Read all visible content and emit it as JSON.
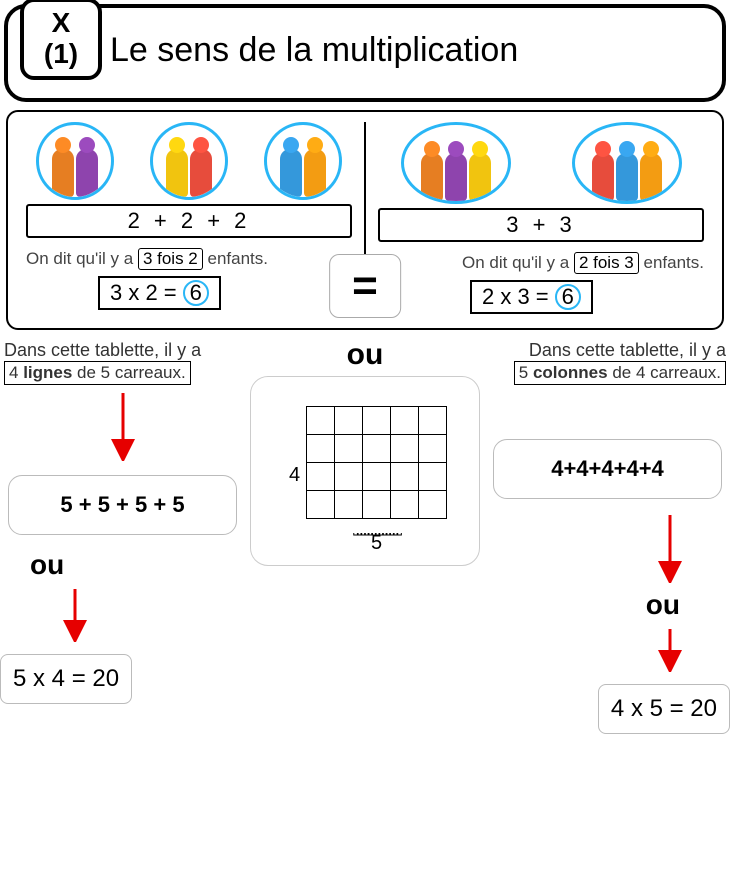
{
  "header": {
    "badge_top": "X",
    "badge_bottom": "(1)",
    "title": "Le sens de la multiplication"
  },
  "panel1": {
    "left": {
      "groups": [
        [
          "#e67e22",
          "#8e44ad"
        ],
        [
          "#f1c40f",
          "#e74c3c"
        ],
        [
          "#3498db",
          "#f39c12"
        ]
      ],
      "addition": "2     +     2     +     2",
      "say_pre": "On dit qu'il y a",
      "say_box": "3 fois 2",
      "say_post": "enfants.",
      "mult": "3 x 2 =",
      "result": "6"
    },
    "right": {
      "groups": [
        [
          "#e67e22",
          "#8e44ad",
          "#f1c40f"
        ],
        [
          "#e74c3c",
          "#3498db",
          "#f39c12"
        ]
      ],
      "addition": "3        +        3",
      "say_pre": "On dit qu'il y a",
      "say_box": "2 fois 3",
      "say_post": "enfants.",
      "mult": "2 x 3 =",
      "result": "6"
    },
    "equals": "="
  },
  "panel2": {
    "ou": "ou",
    "left": {
      "intro": "Dans cette tablette, il y a",
      "box_html": "4 <b>lignes</b> de 5 carreaux.",
      "sum": "5 + 5 + 5 + 5",
      "ou": "ou",
      "result": "5 x 4 = 20"
    },
    "right": {
      "intro": "Dans cette tablette, il y a",
      "box_html": "5 <b>colonnes</b> de 4 carreaux.",
      "sum": "4+4+4+4+4",
      "ou": "ou",
      "result": "4 x 5 = 20"
    },
    "grid": {
      "rows": 4,
      "cols": 5,
      "row_label": "4",
      "col_label": "5"
    },
    "arrow_color": "#e60000"
  }
}
